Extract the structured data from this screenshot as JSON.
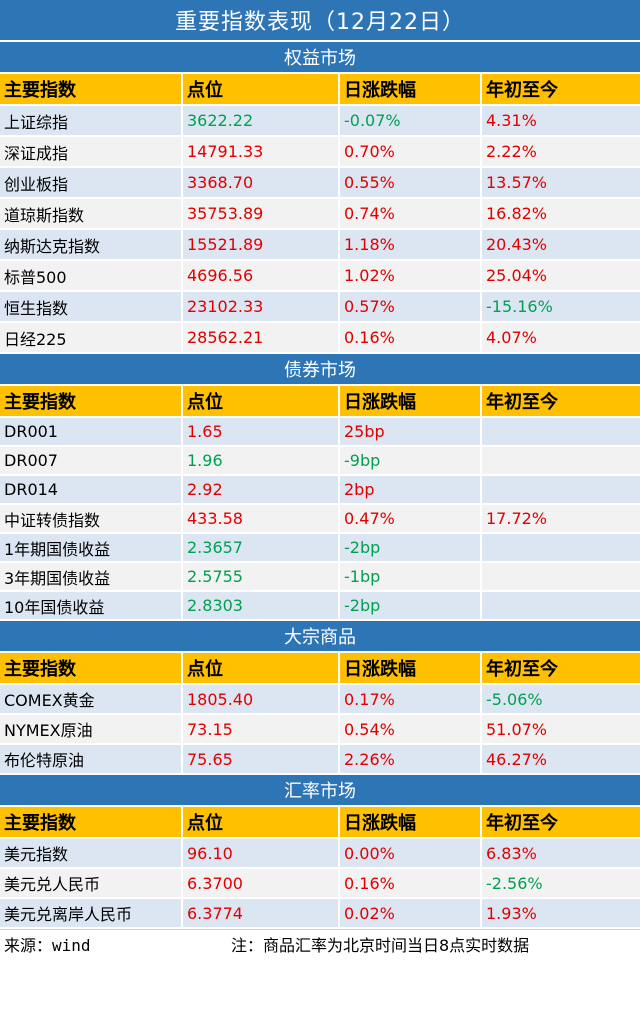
{
  "title": "重要指数表现（12月22日）",
  "header": {
    "col1": "主要指数",
    "col2": "点位",
    "col3": "日涨跌幅",
    "col4": "年初至今"
  },
  "colors": {
    "bar": "#2e75b6",
    "header": "#ffc000",
    "up": "#e00000",
    "down": "#00a050"
  },
  "sections": [
    {
      "name": "权益市场",
      "rows": [
        {
          "name": "上证综指",
          "value": "3622.22",
          "change": "-0.07%",
          "ytd": "4.31%"
        },
        {
          "name": "深证成指",
          "value": "14791.33",
          "change": "0.70%",
          "ytd": "2.22%"
        },
        {
          "name": "创业板指",
          "value": "3368.70",
          "change": "0.55%",
          "ytd": "13.57%"
        },
        {
          "name": "道琼斯指数",
          "value": "35753.89",
          "change": "0.74%",
          "ytd": "16.82%"
        },
        {
          "name": "纳斯达克指数",
          "value": "15521.89",
          "change": "1.18%",
          "ytd": "20.43%"
        },
        {
          "name": "标普500",
          "value": "4696.56",
          "change": "1.02%",
          "ytd": "25.04%"
        },
        {
          "name": "恒生指数",
          "value": "23102.33",
          "change": "0.57%",
          "ytd": "-15.16%"
        },
        {
          "name": "日经225",
          "value": "28562.21",
          "change": "0.16%",
          "ytd": "4.07%"
        }
      ]
    },
    {
      "name": "债券市场",
      "rows": [
        {
          "name": "DR001",
          "value": "1.65",
          "change": "25bp",
          "ytd": ""
        },
        {
          "name": "DR007",
          "value": "1.96",
          "change": "-9bp",
          "ytd": ""
        },
        {
          "name": "DR014",
          "value": "2.92",
          "change": "2bp",
          "ytd": ""
        },
        {
          "name": "中证转债指数",
          "value": "433.58",
          "change": "0.47%",
          "ytd": "17.72%"
        },
        {
          "name": "1年期国债收益",
          "value": "2.3657",
          "change": "-2bp",
          "ytd": ""
        },
        {
          "name": "3年期国债收益",
          "value": "2.5755",
          "change": "-1bp",
          "ytd": ""
        },
        {
          "name": "10年国债收益",
          "value": "2.8303",
          "change": "-2bp",
          "ytd": ""
        }
      ]
    },
    {
      "name": "大宗商品",
      "rows": [
        {
          "name": "COMEX黄金",
          "value": "1805.40",
          "change": "0.17%",
          "ytd": "-5.06%"
        },
        {
          "name": "NYMEX原油",
          "value": "73.15",
          "change": "0.54%",
          "ytd": "51.07%"
        },
        {
          "name": "布伦特原油",
          "value": "75.65",
          "change": "2.26%",
          "ytd": "46.27%"
        }
      ]
    },
    {
      "name": "汇率市场",
      "rows": [
        {
          "name": "美元指数",
          "value": "96.10",
          "change": "0.00%",
          "ytd": "6.83%"
        },
        {
          "name": "美元兑人民币",
          "value": "6.3700",
          "change": "0.16%",
          "ytd": "-2.56%"
        },
        {
          "name": "美元兑离岸人民币",
          "value": "6.3774",
          "change": "0.02%",
          "ytd": "1.93%"
        }
      ]
    }
  ],
  "footer": {
    "source": "来源：wind",
    "note": "注：商品汇率为北京时间当日8点实时数据"
  }
}
